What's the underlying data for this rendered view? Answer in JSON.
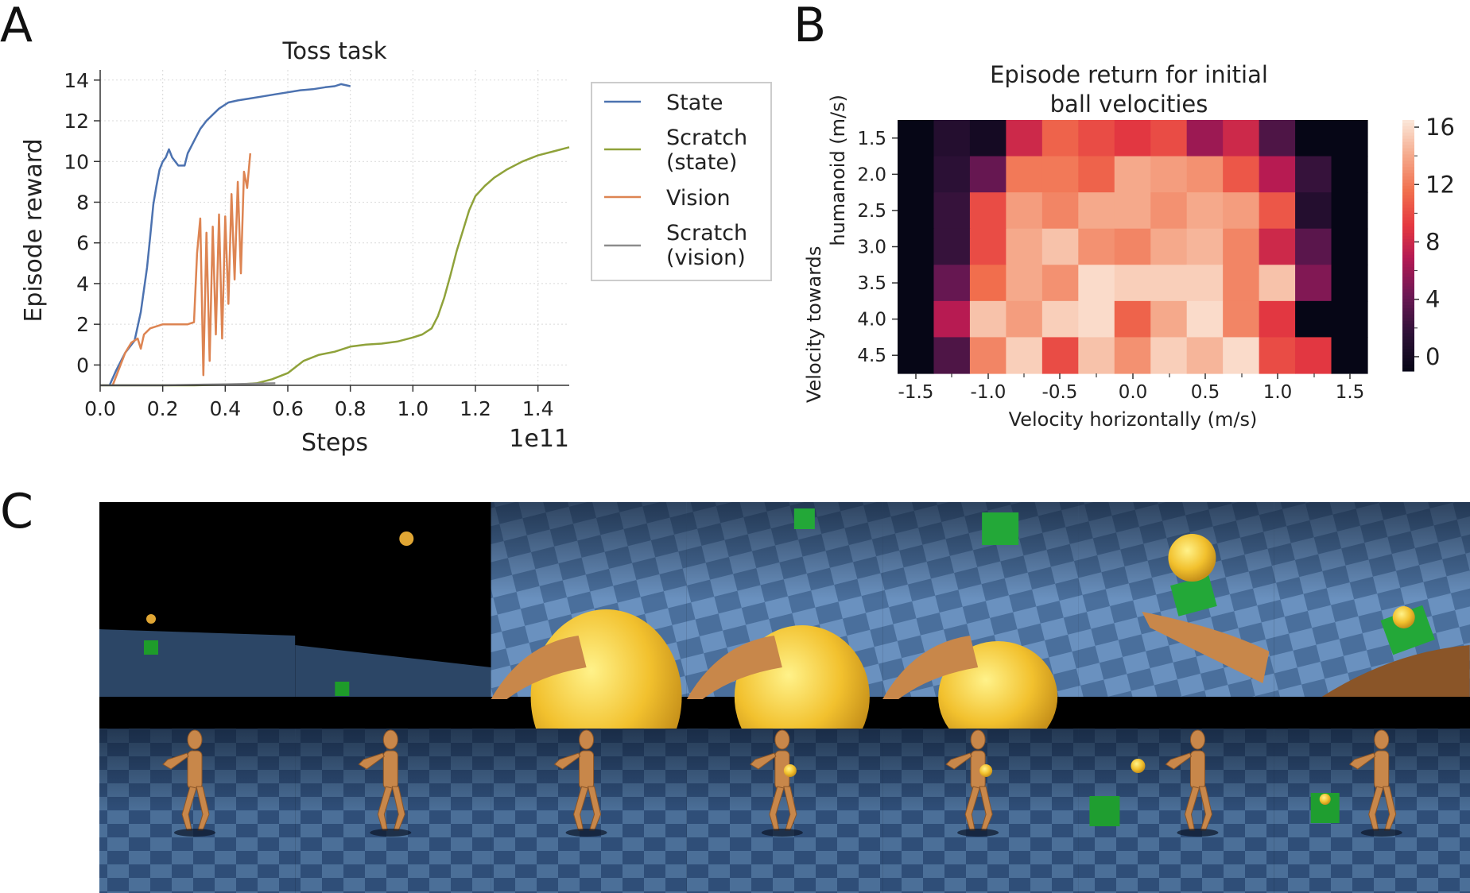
{
  "panel_labels": [
    "A",
    "B",
    "C"
  ],
  "chart_data": [
    {
      "type": "line",
      "title": "Toss task",
      "xlabel": "Steps",
      "ylabel": "Episode reward",
      "x_offset_label": "1e11",
      "xlim": [
        0.0,
        1.5
      ],
      "ylim": [
        -1,
        14.5
      ],
      "xticks": [
        "0.0",
        "0.2",
        "0.4",
        "0.6",
        "0.8",
        "1.0",
        "1.2",
        "1.4"
      ],
      "yticks": [
        "0",
        "2",
        "4",
        "6",
        "8",
        "10",
        "12",
        "14"
      ],
      "grid": true,
      "legend_position": "right, outside",
      "series": [
        {
          "name": "State",
          "color": "#4c72b0",
          "points": [
            [
              0.03,
              -1
            ],
            [
              0.05,
              -0.3
            ],
            [
              0.08,
              0.6
            ],
            [
              0.11,
              1.2
            ],
            [
              0.13,
              2.6
            ],
            [
              0.15,
              4.8
            ],
            [
              0.16,
              6.3
            ],
            [
              0.17,
              7.9
            ],
            [
              0.18,
              8.8
            ],
            [
              0.19,
              9.6
            ],
            [
              0.2,
              10.0
            ],
            [
              0.21,
              10.2
            ],
            [
              0.22,
              10.6
            ],
            [
              0.23,
              10.2
            ],
            [
              0.24,
              10.0
            ],
            [
              0.25,
              9.8
            ],
            [
              0.27,
              9.8
            ],
            [
              0.28,
              10.4
            ],
            [
              0.3,
              11.0
            ],
            [
              0.32,
              11.6
            ],
            [
              0.34,
              12.0
            ],
            [
              0.36,
              12.3
            ],
            [
              0.38,
              12.6
            ],
            [
              0.41,
              12.9
            ],
            [
              0.44,
              13.0
            ],
            [
              0.48,
              13.1
            ],
            [
              0.52,
              13.2
            ],
            [
              0.56,
              13.3
            ],
            [
              0.6,
              13.4
            ],
            [
              0.64,
              13.5
            ],
            [
              0.68,
              13.55
            ],
            [
              0.72,
              13.65
            ],
            [
              0.75,
              13.7
            ],
            [
              0.77,
              13.8
            ],
            [
              0.8,
              13.7
            ]
          ]
        },
        {
          "name": "Scratch\n(state)",
          "color": "#8fa23a",
          "points": [
            [
              0.0,
              -1
            ],
            [
              0.3,
              -1
            ],
            [
              0.45,
              -0.95
            ],
            [
              0.5,
              -0.9
            ],
            [
              0.55,
              -0.7
            ],
            [
              0.6,
              -0.4
            ],
            [
              0.65,
              0.2
            ],
            [
              0.7,
              0.5
            ],
            [
              0.75,
              0.65
            ],
            [
              0.8,
              0.9
            ],
            [
              0.85,
              1.0
            ],
            [
              0.9,
              1.05
            ],
            [
              0.95,
              1.15
            ],
            [
              1.0,
              1.35
            ],
            [
              1.03,
              1.5
            ],
            [
              1.06,
              1.8
            ],
            [
              1.08,
              2.4
            ],
            [
              1.1,
              3.3
            ],
            [
              1.12,
              4.4
            ],
            [
              1.14,
              5.6
            ],
            [
              1.16,
              6.6
            ],
            [
              1.18,
              7.6
            ],
            [
              1.2,
              8.3
            ],
            [
              1.23,
              8.8
            ],
            [
              1.26,
              9.2
            ],
            [
              1.3,
              9.6
            ],
            [
              1.35,
              10.0
            ],
            [
              1.4,
              10.3
            ],
            [
              1.45,
              10.5
            ],
            [
              1.5,
              10.7
            ]
          ]
        },
        {
          "name": "Vision",
          "color": "#dd8452",
          "points": [
            [
              0.04,
              -1
            ],
            [
              0.06,
              -0.2
            ],
            [
              0.08,
              0.6
            ],
            [
              0.1,
              1.1
            ],
            [
              0.12,
              1.3
            ],
            [
              0.13,
              0.8
            ],
            [
              0.14,
              1.5
            ],
            [
              0.16,
              1.8
            ],
            [
              0.2,
              2.0
            ],
            [
              0.24,
              2.0
            ],
            [
              0.28,
              2.0
            ],
            [
              0.3,
              2.1
            ],
            [
              0.31,
              5.5
            ],
            [
              0.32,
              7.2
            ],
            [
              0.33,
              -0.5
            ],
            [
              0.34,
              6.5
            ],
            [
              0.35,
              0.2
            ],
            [
              0.36,
              6.8
            ],
            [
              0.37,
              1.5
            ],
            [
              0.38,
              7.4
            ],
            [
              0.39,
              1.3
            ],
            [
              0.4,
              7.3
            ],
            [
              0.41,
              3.0
            ],
            [
              0.42,
              8.4
            ],
            [
              0.43,
              4.2
            ],
            [
              0.44,
              9.0
            ],
            [
              0.45,
              4.5
            ],
            [
              0.46,
              9.5
            ],
            [
              0.47,
              8.7
            ],
            [
              0.48,
              10.4
            ]
          ]
        },
        {
          "name": "Scratch\n(vision)",
          "color": "#8c8c8c",
          "points": [
            [
              0.0,
              -1
            ],
            [
              0.2,
              -1
            ],
            [
              0.4,
              -0.95
            ],
            [
              0.56,
              -0.9
            ]
          ]
        }
      ]
    },
    {
      "type": "heatmap",
      "title": "Episode return for initial\nball velocities",
      "xlabel": "Velocity horizontally (m/s)",
      "ylabel": "Velocity towards\nhumanoid (m/s)",
      "xticks": [
        "-1.5",
        "-1.0",
        "-0.5",
        "0.0",
        "0.5",
        "1.0",
        "1.5"
      ],
      "yticks": [
        "1.5",
        "2.0",
        "2.5",
        "3.0",
        "3.5",
        "4.0",
        "4.5"
      ],
      "colorbar_ticks": [
        "0",
        "4",
        "8",
        "12",
        "16"
      ],
      "vmin": -1,
      "vmax": 16.5,
      "values": [
        [
          -1,
          1,
          0,
          8,
          11,
          10,
          9,
          10,
          6,
          8,
          3,
          -1,
          -1
        ],
        [
          -1,
          1.5,
          4,
          12,
          12,
          11,
          14,
          13.5,
          13,
          10.5,
          7,
          2,
          -1
        ],
        [
          -1,
          2,
          10,
          13.5,
          12.5,
          14,
          14,
          13,
          14,
          13.5,
          10.5,
          1,
          -1
        ],
        [
          -1,
          2,
          10,
          14,
          15,
          13,
          12.5,
          14,
          14.5,
          12.5,
          8,
          3.5,
          -1
        ],
        [
          -1,
          4,
          11.5,
          14,
          13,
          16,
          15.5,
          15.5,
          15.5,
          12.5,
          15,
          5,
          -1
        ],
        [
          -1,
          7,
          15,
          13.5,
          15.5,
          16,
          11,
          14,
          16,
          12.5,
          9,
          -1,
          -1
        ],
        [
          -1,
          3,
          12.5,
          15.5,
          10,
          15,
          13,
          15.5,
          14.5,
          16,
          10,
          9,
          -1
        ]
      ]
    }
  ],
  "panel_c": {
    "top_row_tiles": 7,
    "bottom_row_tiles": 7
  }
}
